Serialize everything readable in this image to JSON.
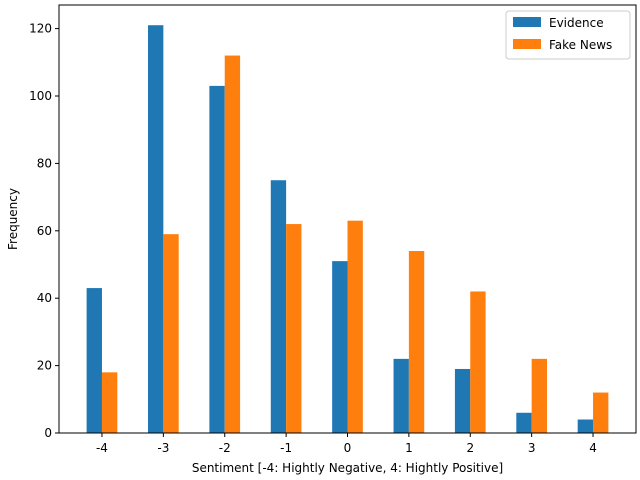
{
  "chart_data": {
    "type": "bar",
    "categories": [
      "-4",
      "-3",
      "-2",
      "-1",
      "0",
      "1",
      "2",
      "3",
      "4"
    ],
    "series": [
      {
        "name": "Evidence",
        "color": "#1f77b4",
        "values": [
          43,
          121,
          103,
          75,
          51,
          22,
          19,
          6,
          4
        ]
      },
      {
        "name": "Fake News",
        "color": "#ff7f0e",
        "values": [
          18,
          59,
          112,
          62,
          63,
          54,
          42,
          22,
          12
        ]
      }
    ],
    "xlabel": "Sentiment [-4: Hightly Negative, 4: Hightly Positive]",
    "ylabel": "Frequency",
    "ylim": [
      0,
      127
    ],
    "yticks": [
      0,
      20,
      40,
      60,
      80,
      100,
      120
    ],
    "legend": "top-right",
    "grid": false
  }
}
